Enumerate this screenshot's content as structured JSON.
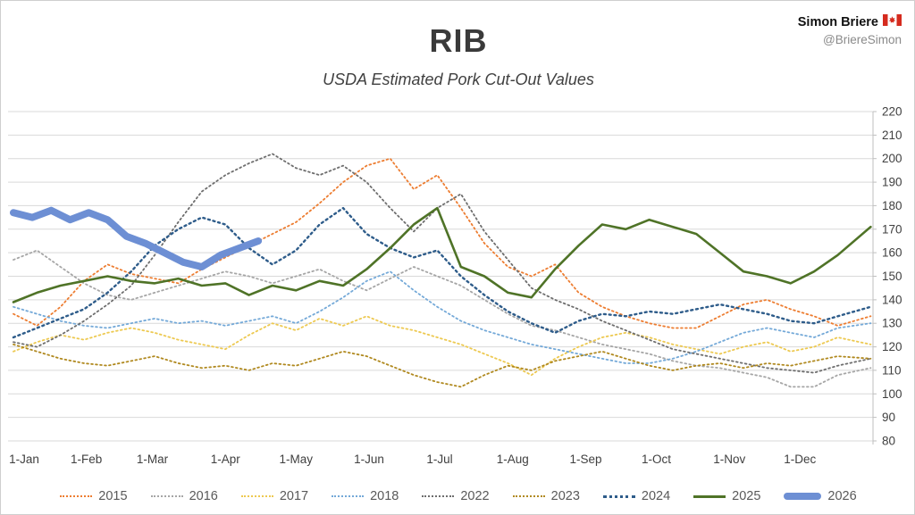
{
  "header": {
    "title": "RIB",
    "subtitle": "USDA Estimated Pork Cut-Out Values",
    "attribution_name": "Simon Briere",
    "attribution_handle": "@BriereSimon",
    "flag_icon": "canada-flag-icon"
  },
  "axes": {
    "y_ticks": [
      220,
      210,
      200,
      190,
      180,
      170,
      160,
      150,
      140,
      130,
      120,
      110,
      100,
      90,
      80
    ],
    "x_ticks": [
      "1-Jan",
      "1-Feb",
      "1-Mar",
      "1-Apr",
      "1-May",
      "1-Jun",
      "1-Jul",
      "1-Aug",
      "1-Sep",
      "1-Oct",
      "1-Nov",
      "1-Dec"
    ],
    "x_tick_days": [
      0,
      31,
      59,
      90,
      120,
      151,
      181,
      212,
      243,
      273,
      304,
      334
    ],
    "days_in_year": 365
  },
  "chart_data": {
    "type": "line",
    "title": "RIB",
    "subtitle": "USDA Estimated Pork Cut-Out Values",
    "xlabel": "",
    "ylabel": "",
    "ylim": [
      80,
      220
    ],
    "grid": true,
    "legend_position": "bottom",
    "x_days": [
      0,
      10,
      20,
      30,
      40,
      50,
      60,
      70,
      80,
      90,
      100,
      110,
      120,
      130,
      140,
      150,
      160,
      170,
      180,
      190,
      200,
      210,
      220,
      230,
      240,
      250,
      260,
      270,
      280,
      290,
      300,
      310,
      320,
      330,
      340,
      350,
      364
    ],
    "series": [
      {
        "name": "2015",
        "color": "#ED7D31",
        "style": "dotted",
        "values": [
          134,
          129,
          137,
          148,
          155,
          151,
          149,
          147,
          153,
          158,
          163,
          168,
          173,
          181,
          190,
          197,
          200,
          187,
          193,
          179,
          164,
          154,
          150,
          155,
          143,
          137,
          133,
          130,
          128,
          128,
          133,
          138,
          140,
          136,
          133,
          129,
          133
        ]
      },
      {
        "name": "2016",
        "color": "#A6A6A6",
        "style": "dotted",
        "values": [
          157,
          161,
          154,
          147,
          142,
          140,
          143,
          146,
          149,
          152,
          150,
          147,
          150,
          153,
          148,
          144,
          149,
          154,
          150,
          146,
          140,
          134,
          129,
          127,
          124,
          121,
          119,
          117,
          114,
          112,
          111,
          109,
          107,
          103,
          103,
          108,
          111
        ]
      },
      {
        "name": "2017",
        "color": "#EDC951",
        "style": "dotted",
        "values": [
          118,
          122,
          125,
          123,
          126,
          128,
          126,
          123,
          121,
          119,
          125,
          130,
          127,
          132,
          129,
          133,
          129,
          127,
          124,
          121,
          117,
          113,
          108,
          115,
          120,
          124,
          126,
          124,
          121,
          119,
          117,
          120,
          122,
          118,
          120,
          124,
          121
        ]
      },
      {
        "name": "2018",
        "color": "#74A9D8",
        "style": "dotted",
        "values": [
          137,
          134,
          131,
          129,
          128,
          130,
          132,
          130,
          131,
          129,
          131,
          133,
          130,
          135,
          141,
          148,
          152,
          144,
          137,
          131,
          127,
          124,
          121,
          119,
          117,
          115,
          113,
          113,
          115,
          118,
          122,
          126,
          128,
          126,
          124,
          128,
          130
        ]
      },
      {
        "name": "2022",
        "color": "#6E6E6E",
        "style": "dotted",
        "values": [
          122,
          120,
          125,
          131,
          138,
          146,
          159,
          173,
          186,
          193,
          198,
          202,
          196,
          193,
          197,
          190,
          179,
          169,
          179,
          185,
          169,
          157,
          145,
          140,
          136,
          131,
          127,
          123,
          119,
          117,
          115,
          113,
          111,
          110,
          109,
          112,
          115
        ]
      },
      {
        "name": "2023",
        "color": "#B0891F",
        "style": "dotted",
        "values": [
          121,
          118,
          115,
          113,
          112,
          114,
          116,
          113,
          111,
          112,
          110,
          113,
          112,
          115,
          118,
          116,
          112,
          108,
          105,
          103,
          108,
          112,
          110,
          114,
          116,
          118,
          115,
          112,
          110,
          112,
          113,
          111,
          113,
          112,
          114,
          116,
          115
        ]
      },
      {
        "name": "2024",
        "color": "#2E5C8A",
        "style": "dotted-bold",
        "values": [
          124,
          128,
          132,
          136,
          143,
          152,
          163,
          170,
          175,
          172,
          162,
          155,
          161,
          172,
          179,
          168,
          162,
          158,
          161,
          150,
          142,
          135,
          130,
          126,
          131,
          134,
          133,
          135,
          134,
          136,
          138,
          136,
          134,
          131,
          130,
          133,
          137
        ]
      },
      {
        "name": "2025",
        "color": "#4F7327",
        "style": "solid",
        "values": [
          139,
          143,
          146,
          148,
          150,
          148,
          147,
          149,
          146,
          147,
          142,
          146,
          144,
          148,
          146,
          153,
          162,
          172,
          179,
          154,
          150,
          143,
          141,
          153,
          163,
          172,
          170,
          174,
          171,
          168,
          160,
          152,
          150,
          147,
          152,
          159,
          171
        ]
      },
      {
        "name": "2026",
        "color": "#6D8FD4",
        "style": "thick",
        "x_days": [
          0,
          8,
          16,
          24,
          32,
          40,
          48,
          56,
          64,
          72,
          80,
          88,
          96,
          104
        ],
        "values": [
          177,
          175,
          178,
          174,
          177,
          174,
          167,
          164,
          160,
          156,
          154,
          159,
          162,
          165
        ]
      }
    ]
  }
}
